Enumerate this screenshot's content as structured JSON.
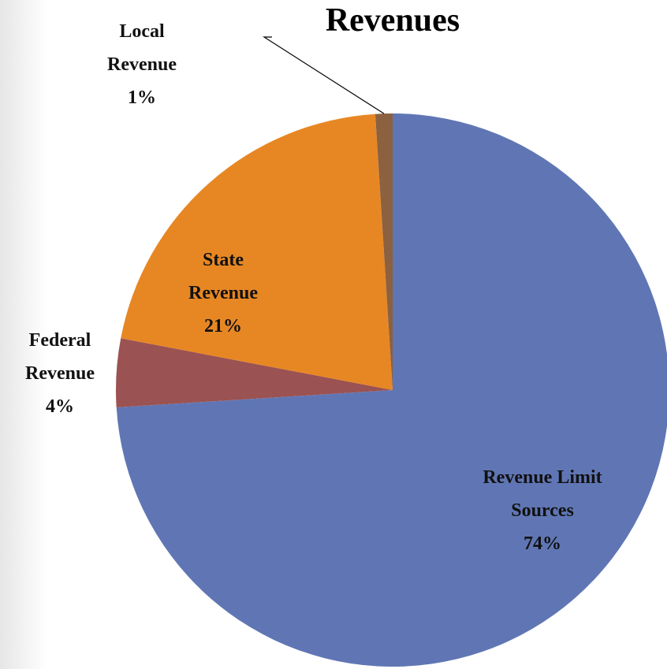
{
  "chart_data": {
    "type": "pie",
    "title": "Revenues",
    "categories": [
      "Revenue Limit Sources",
      "Federal Revenue",
      "State Revenue",
      "Local Revenue"
    ],
    "values": [
      74,
      4,
      21,
      1
    ],
    "value_labels": [
      "74%",
      "4%",
      "21%",
      "1%"
    ],
    "colors": [
      "#6076b4",
      "#9b5252",
      "#e78724",
      "#8b6140"
    ]
  }
}
